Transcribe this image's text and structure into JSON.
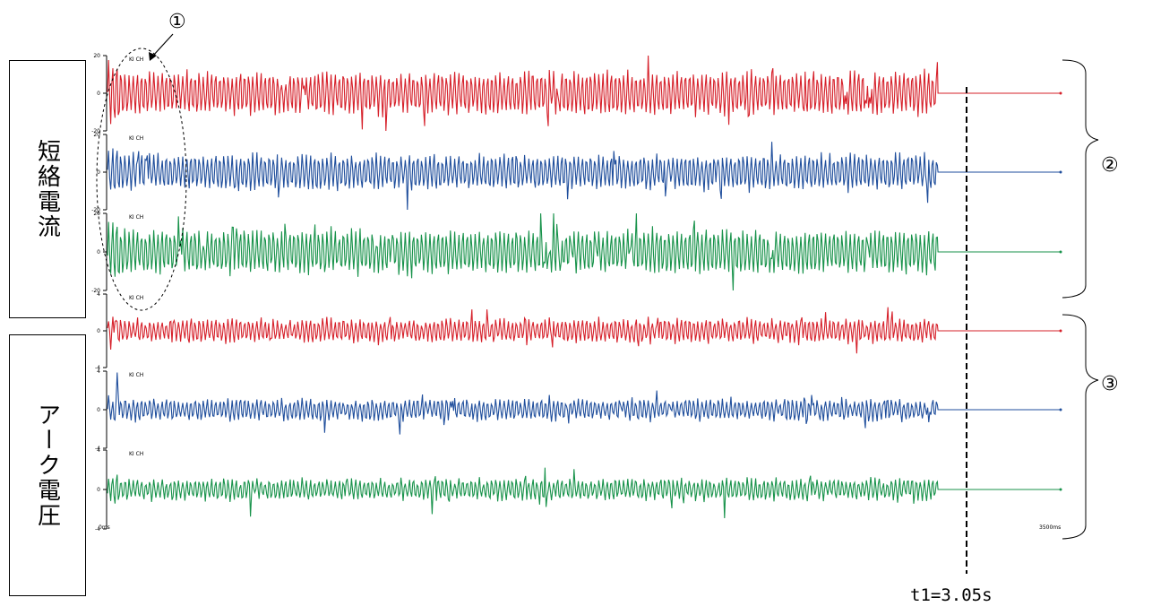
{
  "labels": {
    "current_group": "短絡電流",
    "voltage_group": "アーク電圧",
    "marker_1": "①",
    "marker_2": "②",
    "marker_3": "③",
    "t1_label": "t1=3.05s"
  },
  "colors": {
    "phase_a": "#d6202a",
    "phase_b": "#1f4e9c",
    "phase_c": "#17924a"
  },
  "chart_data": [
    {
      "type": "line",
      "name_hint": "current-phase-a",
      "color": "phase_a",
      "ylim": [
        -20,
        20
      ],
      "yticks": [
        "20",
        "0",
        "-20"
      ],
      "header": "KI CH",
      "amplitude": 0.55,
      "spike": 0.85,
      "active_until": 3.05,
      "after_value": 0
    },
    {
      "type": "line",
      "name_hint": "current-phase-b",
      "color": "phase_b",
      "ylim": [
        -20,
        20
      ],
      "yticks": [
        "20",
        "0",
        "-20"
      ],
      "header": "KI CH",
      "amplitude": 0.45,
      "spike": 1.0,
      "active_until": 3.05,
      "after_value": 0
    },
    {
      "type": "line",
      "name_hint": "current-phase-c",
      "color": "phase_c",
      "ylim": [
        -20,
        20
      ],
      "yticks": [
        "20",
        "0",
        "-20"
      ],
      "header": "KI CH",
      "amplitude": 0.55,
      "spike": 0.8,
      "active_until": 3.05,
      "after_value": 0
    },
    {
      "type": "line",
      "name_hint": "voltage-phase-a",
      "color": "phase_a",
      "ylim": [
        -4,
        4
      ],
      "yticks": [
        "4",
        "0",
        "-4"
      ],
      "header": "KI CH",
      "amplitude": 0.3,
      "spike": 0.5,
      "active_until": 3.05,
      "after_value": 0
    },
    {
      "type": "line",
      "name_hint": "voltage-phase-b",
      "color": "phase_b",
      "ylim": [
        -4,
        4
      ],
      "yticks": [
        "4",
        "0",
        "-4"
      ],
      "header": "KI CH",
      "amplitude": 0.25,
      "spike": 0.55,
      "active_until": 3.05,
      "after_value": 0
    },
    {
      "type": "line",
      "name_hint": "voltage-phase-c",
      "color": "phase_c",
      "ylim": [
        -4,
        4
      ],
      "yticks": [
        "4",
        "0",
        "-4"
      ],
      "header": "KI CH",
      "amplitude": 0.25,
      "spike": 0.5,
      "active_until": 3.05,
      "after_value": 0
    }
  ],
  "xaxis": {
    "start_label": "0ms",
    "end_label": "3500ms"
  }
}
